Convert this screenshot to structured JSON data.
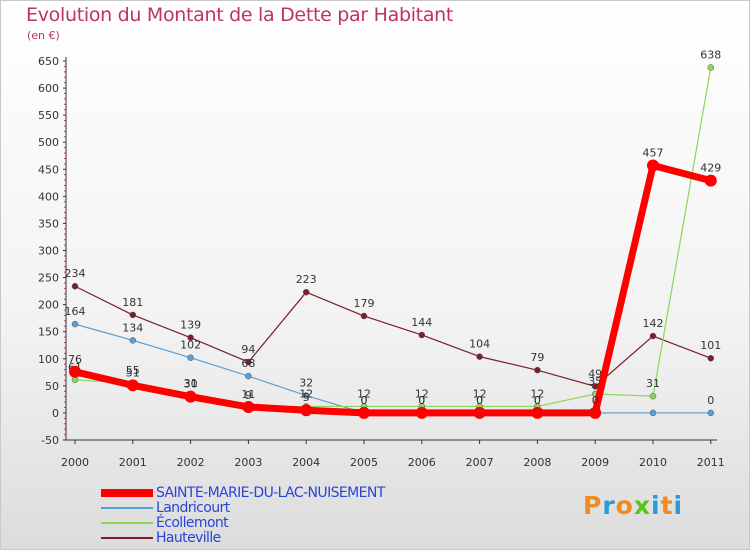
{
  "title": "Evolution du Montant de la Dette par Habitant",
  "subtitle": "(en €)",
  "logo": {
    "text": "Proxiti",
    "letter_colors": [
      "#f08a1c",
      "#2a9bd6",
      "#f08a1c",
      "#5cc21e",
      "#2a9bd6",
      "#f08a1c",
      "#2a9bd6"
    ]
  },
  "chart_data": {
    "type": "line",
    "x": [
      "2000",
      "2001",
      "2002",
      "2003",
      "2004",
      "2005",
      "2006",
      "2007",
      "2008",
      "2009",
      "2010",
      "2011"
    ],
    "ylim": [
      -50,
      650
    ],
    "yticks": [
      -50,
      0,
      50,
      100,
      150,
      200,
      250,
      300,
      350,
      400,
      450,
      500,
      550,
      600,
      650
    ],
    "grid": false,
    "legend_position": "bottom-left",
    "series": [
      {
        "name": "Hauteville",
        "color": "#7a1e2c",
        "values": [
          234,
          181,
          139,
          94,
          223,
          179,
          144,
          104,
          79,
          49,
          142,
          101
        ],
        "labels": [
          "234",
          "181",
          "139",
          "94",
          "223",
          "179",
          "144",
          "104",
          "79",
          "49",
          "142",
          "101"
        ]
      },
      {
        "name": "Landricourt",
        "color": "#5aa0d6",
        "values": [
          164,
          134,
          102,
          68,
          32,
          0,
          0,
          0,
          0,
          0,
          0,
          0
        ],
        "labels": [
          "164",
          "134",
          "102",
          "68",
          "32",
          "0",
          "0",
          "0",
          "0",
          "0",
          "",
          "0"
        ]
      },
      {
        "name": "Écollemont",
        "color": "#8ed65a",
        "values": [
          61,
          55,
          31,
          9,
          12,
          12,
          12,
          12,
          12,
          35,
          31,
          638
        ],
        "labels": [
          "61",
          "55",
          "31",
          "9",
          "12",
          "12",
          "12",
          "12",
          "12",
          "35",
          "31",
          "638"
        ]
      },
      {
        "name": "SAINTE-MARIE-DU-LAC-NUISEMENT",
        "color": "#ff0000",
        "values": [
          76,
          51,
          30,
          11,
          5,
          0,
          0,
          0,
          0,
          0,
          457,
          429
        ],
        "labels": [
          "76",
          "51",
          "30",
          "11",
          "5",
          "0",
          "0",
          "0",
          "0",
          "0",
          "457",
          "429"
        ]
      }
    ],
    "legend": [
      {
        "name": "SAINTE-MARIE-DU-LAC-NUISEMENT",
        "color": "#ff0000"
      },
      {
        "name": "Landricourt",
        "color": "#5aa0d6"
      },
      {
        "name": "Écollemont",
        "color": "#8ed65a"
      },
      {
        "name": "Hauteville",
        "color": "#7a1e2c"
      }
    ]
  }
}
